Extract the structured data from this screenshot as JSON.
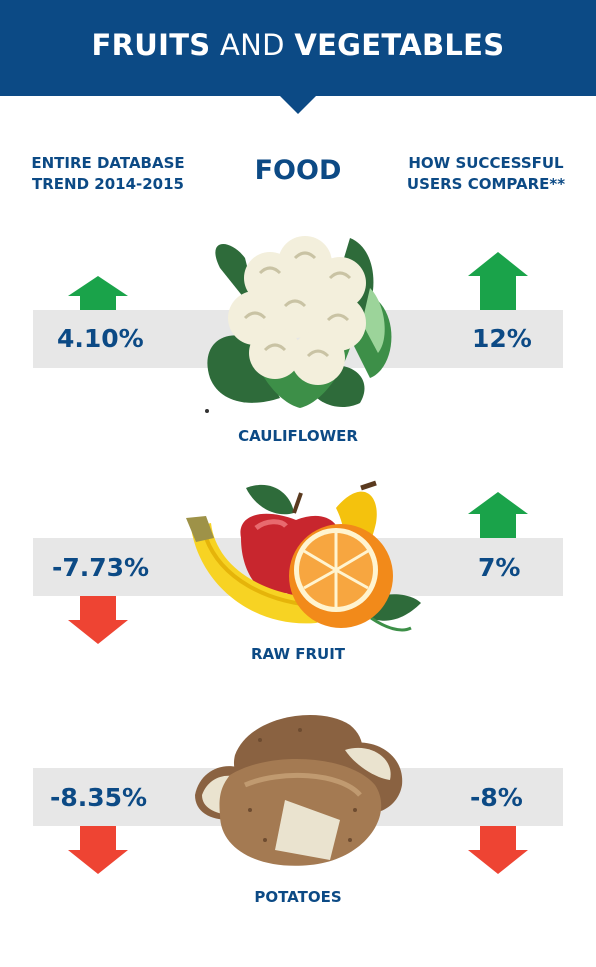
{
  "header": {
    "title_bold_1": "FRUITS",
    "title_light": "AND",
    "title_bold_2": "VEGETABLES"
  },
  "columns": {
    "left_line1": "ENTIRE DATABASE",
    "left_line2": "TREND 2014-2015",
    "middle": "FOOD",
    "right_line1": "HOW SUCCESSFUL",
    "right_line2": "USERS COMPARE**"
  },
  "rows": [
    {
      "food": "CAULIFLOWER",
      "food_icon": "cauliflower-icon",
      "database_trend": "4.10%",
      "database_direction": "up",
      "successful_users": "12%",
      "successful_direction": "up"
    },
    {
      "food": "RAW FRUIT",
      "food_icon": "fruit-icon",
      "database_trend": "-7.73%",
      "database_direction": "down",
      "successful_users": "7%",
      "successful_direction": "up"
    },
    {
      "food": "POTATOES",
      "food_icon": "potatoes-icon",
      "database_trend": "-8.35%",
      "database_direction": "down",
      "successful_users": "-8%",
      "successful_direction": "down"
    }
  ],
  "colors": {
    "navy": "#0c4a85",
    "up_arrow": "#1aa34a",
    "down_arrow": "#ee4433",
    "band": "#e7e7e7"
  }
}
